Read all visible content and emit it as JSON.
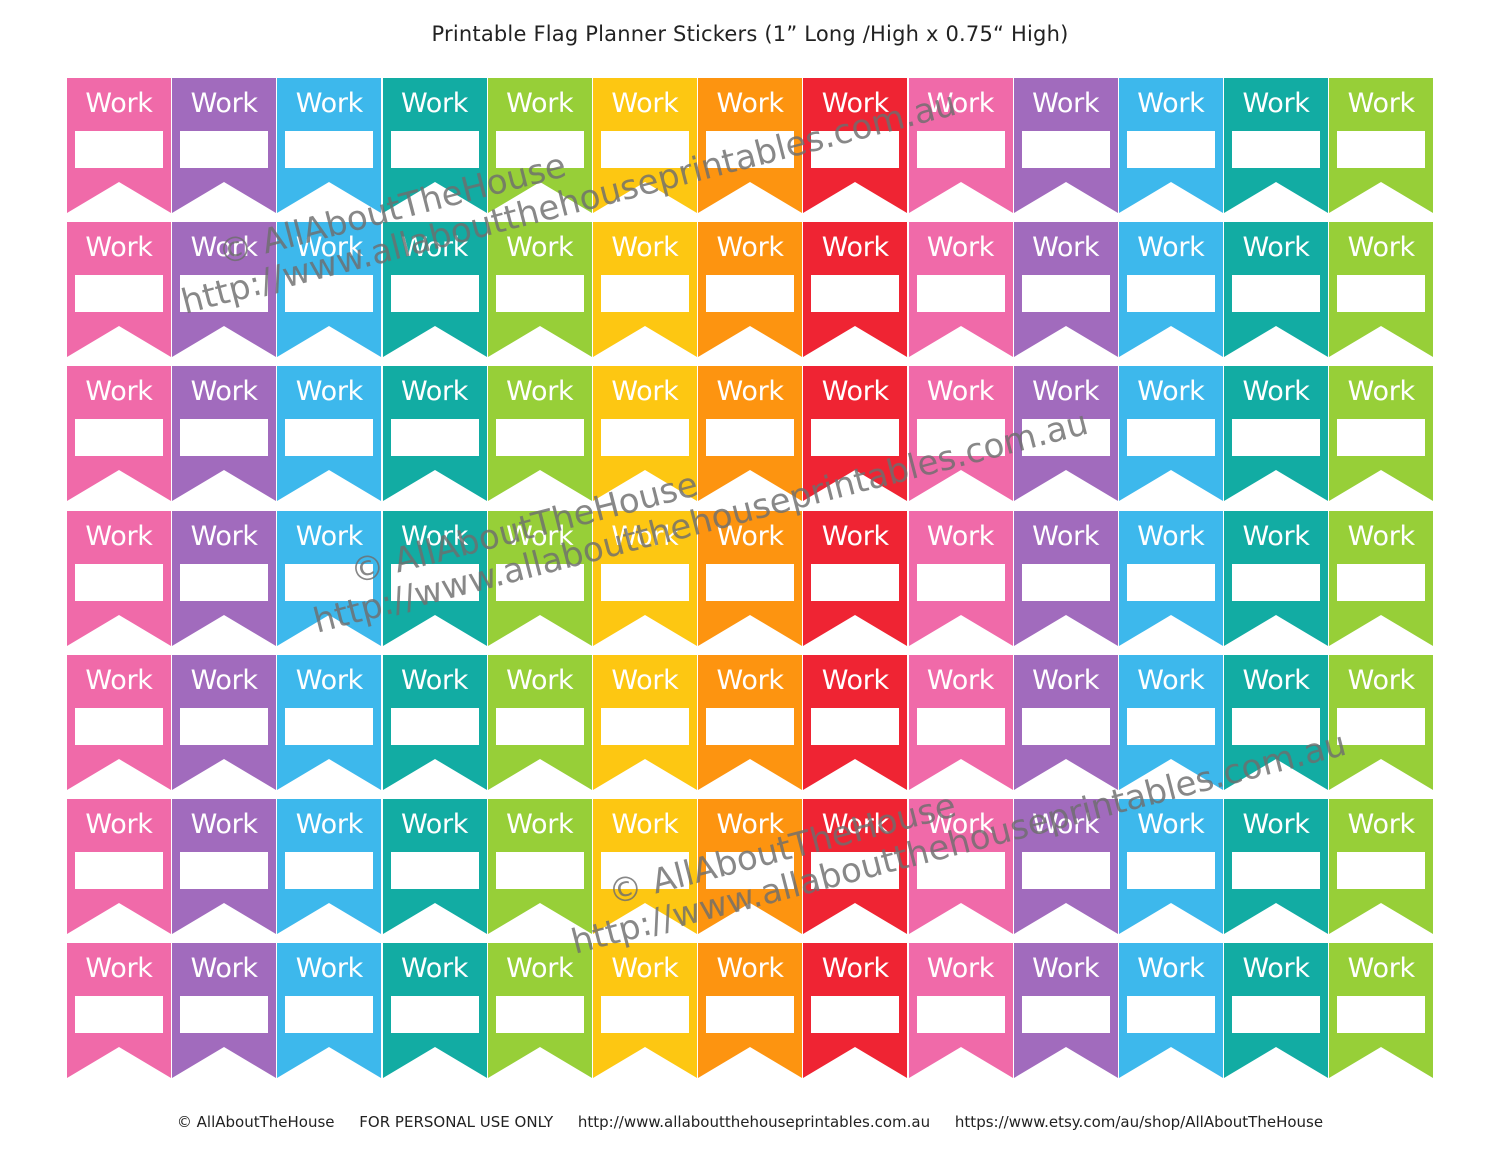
{
  "title": "Printable Flag Planner Stickers  (1” Long /High x 0.75“ High)",
  "sticker_label": "Work",
  "rows": 7,
  "columns": 13,
  "column_colors": [
    "#f06aa9",
    "#a16bbd",
    "#3db8ec",
    "#12aca3",
    "#97cf38",
    "#fdc712",
    "#fd9410",
    "#ef2433",
    "#f06aa9",
    "#a16bbd",
    "#3db8ec",
    "#12aca3",
    "#97cf38"
  ],
  "watermark": {
    "line1": "© AllAboutTheHouse",
    "line2": "http://www.allaboutthehouseprintables.com.au"
  },
  "footer": {
    "copyright": "© AllAboutTheHouse",
    "personal_use": "FOR PERSONAL USE ONLY",
    "website": "http://www.allaboutthehouseprintables.com.au",
    "etsy": "https://www.etsy.com/au/shop/AllAboutTheHouse"
  }
}
